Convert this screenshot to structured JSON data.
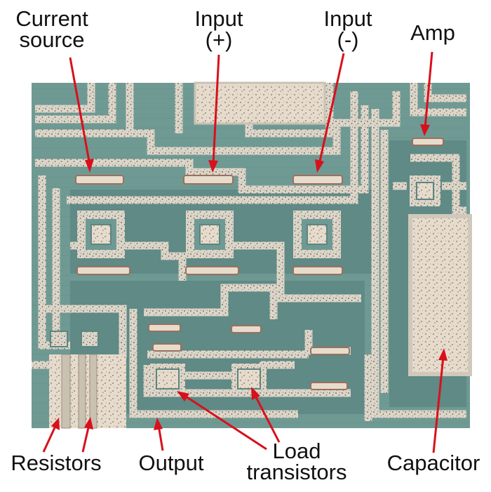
{
  "labels": {
    "current_source": [
      "Current",
      "source"
    ],
    "input_plus": [
      "Input",
      "(+)"
    ],
    "input_minus": [
      "Input",
      "(-)"
    ],
    "amp": "Amp",
    "resistors": "Resistors",
    "output": "Output",
    "load_transistors": [
      "Load",
      "transistors"
    ],
    "capacitor": "Capacitor"
  },
  "colors": {
    "substrate": "#6f9a94",
    "metal": "#d8d2c6",
    "metal_speckle": "#8f8676",
    "pad": "#e4d8c8",
    "line": "#d8101c",
    "text": "#111111",
    "background": "#ffffff"
  }
}
